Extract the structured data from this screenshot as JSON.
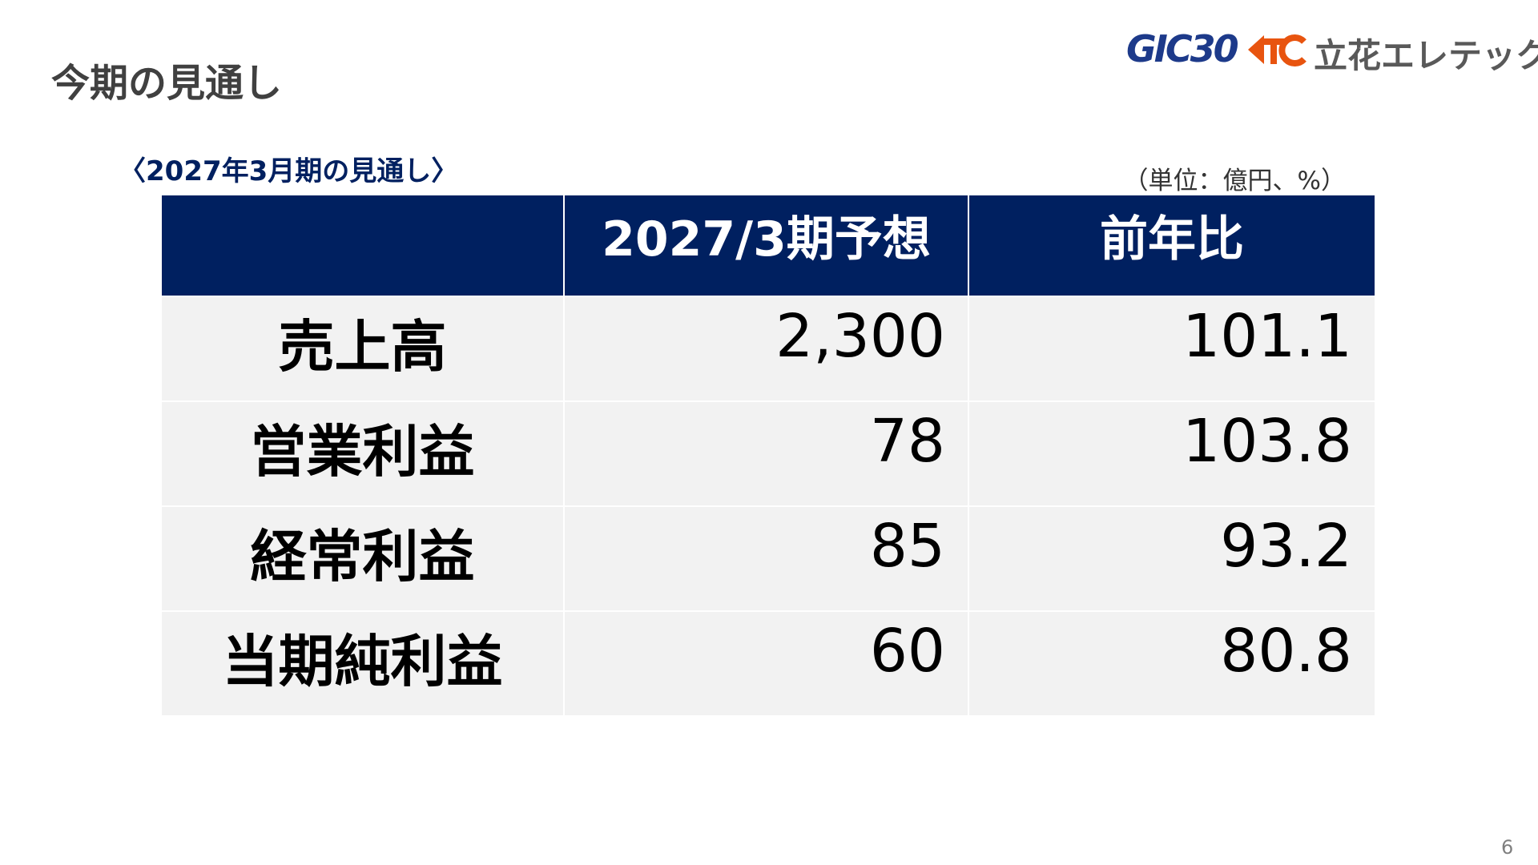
{
  "header": {
    "title": "今期の見通し",
    "logo_gic": "GIC30",
    "logo_company": "立花エレテック"
  },
  "subtitle": "〈2027年3月期の見通し〉",
  "unit": "（単位：億円、%）",
  "table": {
    "columns": [
      "2027/3期予想",
      "前年比"
    ],
    "rows": [
      [
        "売上高",
        "2,300",
        "101.1"
      ],
      [
        "営業利益",
        "78",
        "103.8"
      ],
      [
        "経常利益",
        "85",
        "93.2"
      ],
      [
        "当期純利益",
        "60",
        "80.8"
      ]
    ]
  },
  "page_number": "6"
}
